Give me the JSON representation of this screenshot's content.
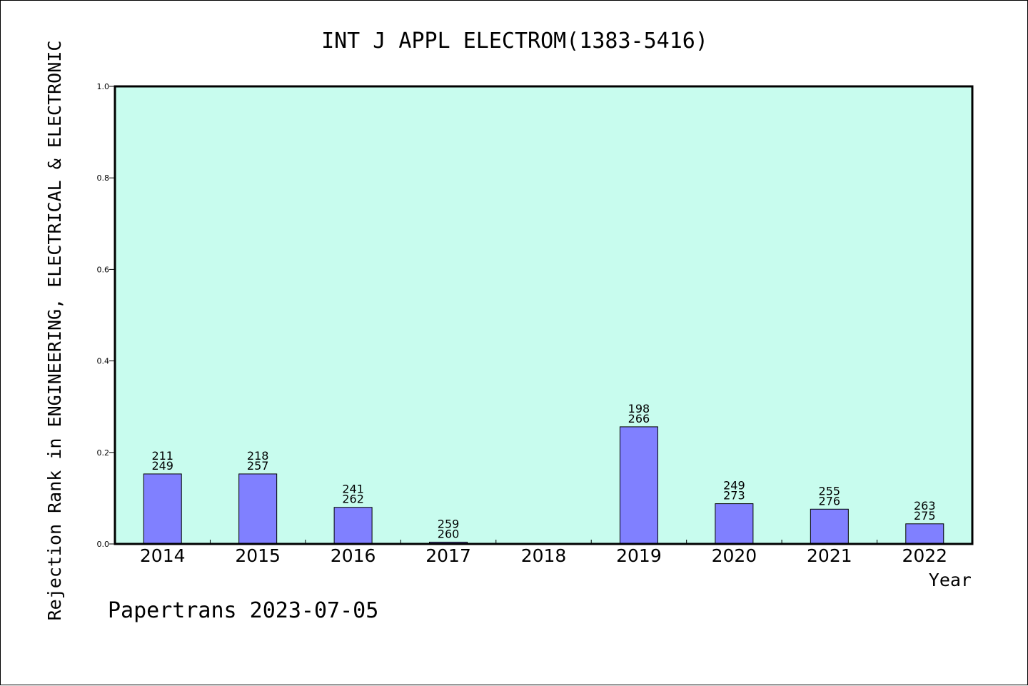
{
  "chart_data": {
    "type": "bar",
    "title": "INT J APPL ELECTROM(1383-5416)",
    "xlabel": "Year",
    "ylabel": "Rejection Rank in ENGINEERING, ELECTRICAL & ELECTRONIC",
    "footer": "Papertrans 2023-07-05",
    "ylim": [
      0,
      1.0
    ],
    "yticks": [
      "0.0",
      "0.2",
      "0.4",
      "0.6",
      "0.8",
      "1.0"
    ],
    "yticks_values": [
      0,
      0.2,
      0.4,
      0.6,
      0.8,
      1.0
    ],
    "categories": [
      "2014",
      "2015",
      "2016",
      "2017",
      "2018",
      "2019",
      "2020",
      "2021",
      "2022"
    ],
    "values": [
      0.153,
      0.153,
      0.08,
      0.004,
      null,
      0.256,
      0.088,
      0.076,
      0.044
    ],
    "labels_top": [
      "211",
      "218",
      "241",
      "259",
      "",
      "198",
      "249",
      "255",
      "263"
    ],
    "labels_bottom": [
      "249",
      "257",
      "262",
      "260",
      "",
      "266",
      "273",
      "276",
      "275"
    ],
    "grid": false,
    "colors": {
      "plot_background": "#c8fcee",
      "bar_fill": "#8080ff",
      "bar_stroke": "#000000",
      "axis": "#000000"
    }
  }
}
